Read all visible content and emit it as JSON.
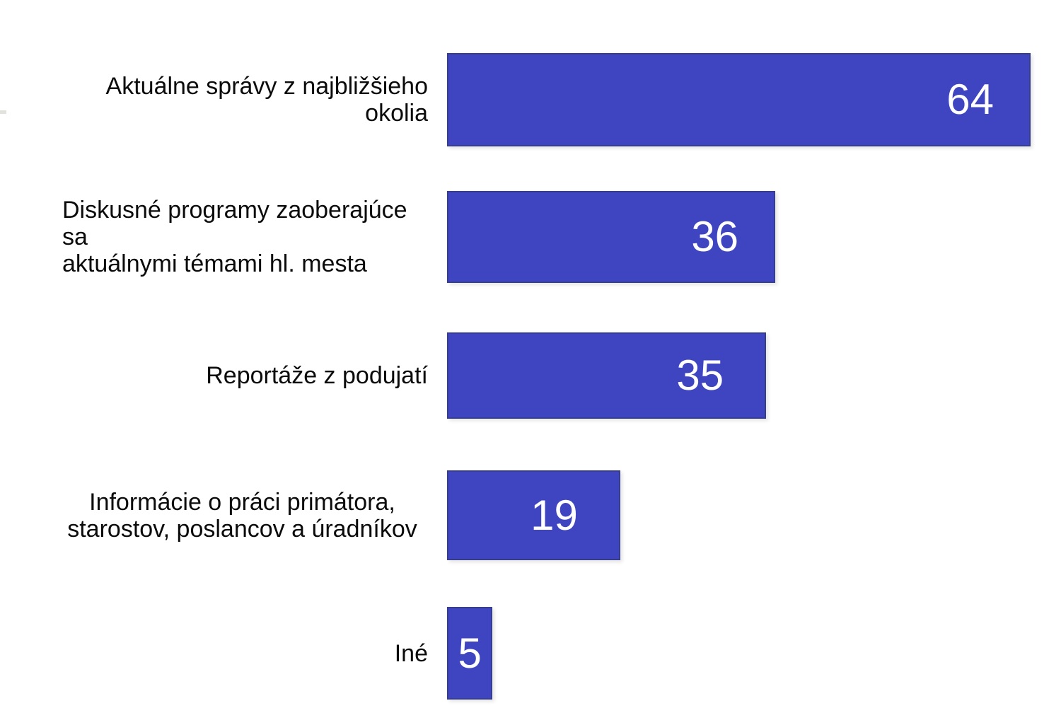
{
  "chart_data": {
    "type": "bar",
    "orientation": "horizontal",
    "title": "",
    "xlabel": "",
    "ylabel": "",
    "grid": false,
    "legend": "none",
    "xlim": [
      0,
      64
    ],
    "categories": [
      "Aktuálne správy z najbližšieho okolia",
      "Diskusné programy zaoberajúce sa aktuálnymi témami hl. mesta",
      "Reportáže z podujatí",
      "Informácie o práci primátora, starostov, poslancov a úradníkov",
      "Iné"
    ],
    "category_lines": [
      [
        "Aktuálne správy z najbližšieho okolia"
      ],
      [
        "Diskusné programy zaoberajúce sa",
        "aktuálnymi témami hl. mesta"
      ],
      [
        "Reportáže z podujatí"
      ],
      [
        "Informácie o práci primátora,",
        "starostov, poslancov a úradníkov"
      ],
      [
        "Iné"
      ]
    ],
    "values": [
      64,
      36,
      35,
      19,
      5
    ],
    "data_labels": [
      "64",
      "36",
      "35",
      "19",
      "5"
    ],
    "colors": {
      "bar_fill": "#3f45c1",
      "bar_border": "#383e8e",
      "value_label": "#ffffff",
      "category_label": "#0b0b0b",
      "background": "#ffffff"
    }
  }
}
